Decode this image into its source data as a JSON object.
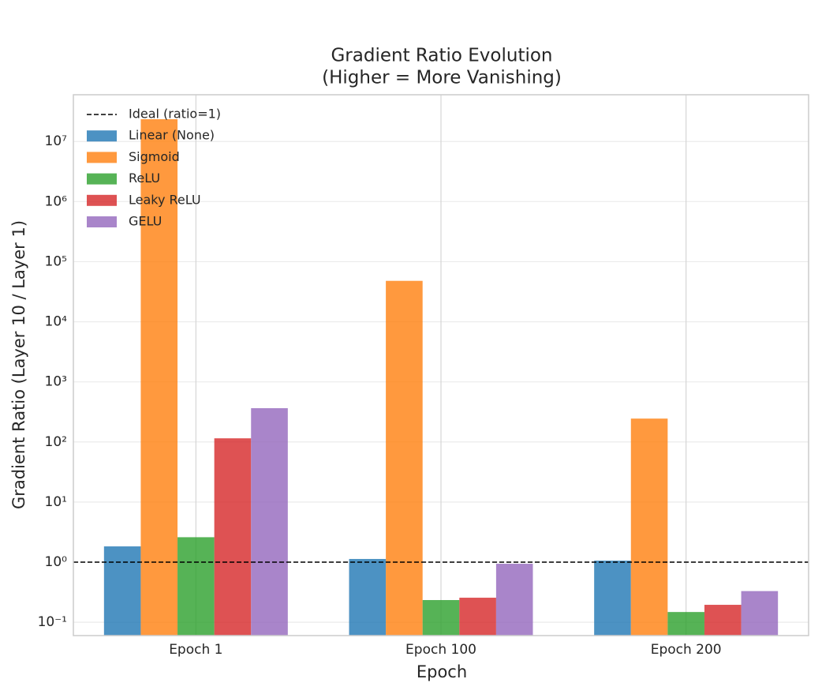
{
  "chart_data": {
    "type": "bar",
    "log_y": true,
    "title": [
      "Gradient Ratio Evolution",
      "(Higher = More Vanishing)"
    ],
    "xlabel": "Epoch",
    "ylabel": "Gradient Ratio (Layer 10 / Layer 1)",
    "categories": [
      "Epoch 1",
      "Epoch 100",
      "Epoch 200"
    ],
    "series": [
      {
        "name": "Linear (None)",
        "color": "#1f77b4",
        "values": [
          1.83,
          1.13,
          1.06
        ]
      },
      {
        "name": "Sigmoid",
        "color": "#ff7f0e",
        "values": [
          23500000,
          48000,
          245
        ]
      },
      {
        "name": "ReLU",
        "color": "#2ca02c",
        "values": [
          2.6,
          0.234,
          0.148
        ]
      },
      {
        "name": "Leaky ReLU",
        "color": "#d62728",
        "values": [
          115,
          0.256,
          0.195
        ]
      },
      {
        "name": "GELU",
        "color": "#9467bd",
        "values": [
          365,
          0.94,
          0.33
        ]
      }
    ],
    "reference_line": {
      "value": 1,
      "label": "Ideal (ratio=1)",
      "color": "#000000"
    },
    "ylim": [
      0.06,
      60000000
    ],
    "yticks": [
      {
        "value": 0.1,
        "label": "10⁻¹"
      },
      {
        "value": 1,
        "label": "10⁰"
      },
      {
        "value": 10,
        "label": "10¹"
      },
      {
        "value": 100,
        "label": "10²"
      },
      {
        "value": 1000,
        "label": "10³"
      },
      {
        "value": 10000,
        "label": "10⁴"
      },
      {
        "value": 100000,
        "label": "10⁵"
      },
      {
        "value": 1000000,
        "label": "10⁶"
      },
      {
        "value": 10000000,
        "label": "10⁷"
      }
    ],
    "grid": true,
    "legend": "upper left"
  }
}
